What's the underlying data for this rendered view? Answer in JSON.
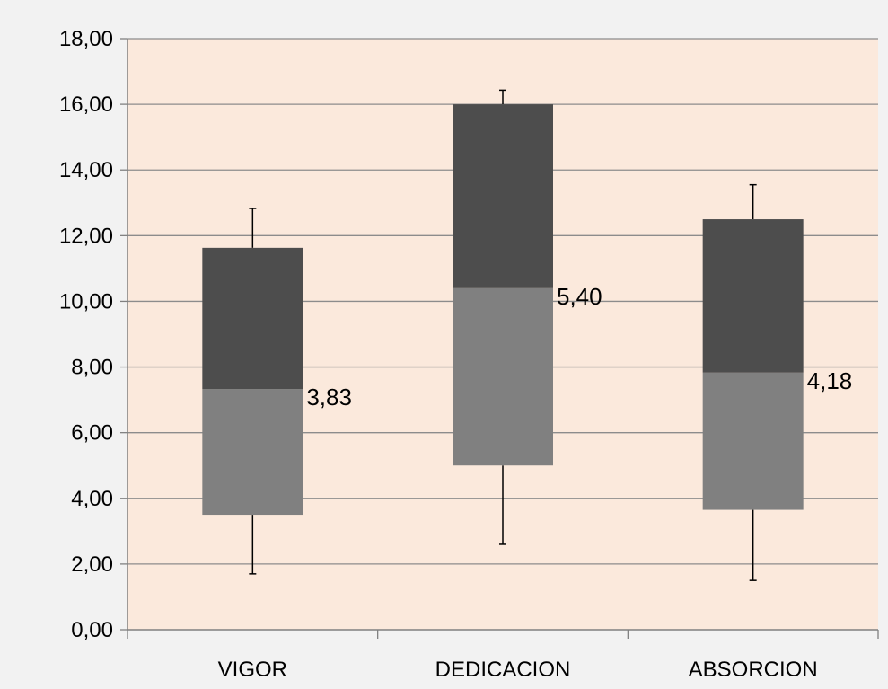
{
  "chart_data": {
    "type": "boxplot",
    "categories": [
      "VIGOR",
      "DEDICACION",
      "ABSORCION"
    ],
    "ylim": [
      0,
      18
    ],
    "y_ticks": [
      "0,00",
      "2,00",
      "4,00",
      "6,00",
      "8,00",
      "10,00",
      "12,00",
      "14,00",
      "16,00",
      "18,00"
    ],
    "y_tick_values": [
      0,
      2,
      4,
      6,
      8,
      10,
      12,
      14,
      16,
      18
    ],
    "grid": true,
    "boxes": [
      {
        "category": "VIGOR",
        "min": 1.7,
        "q1": 3.5,
        "median": 7.33,
        "q3": 11.63,
        "max": 12.83,
        "label": "3,83"
      },
      {
        "category": "DEDICACION",
        "min": 2.6,
        "q1": 5.0,
        "median": 10.4,
        "q3": 16.0,
        "max": 16.43,
        "label": "5,40"
      },
      {
        "category": "ABSORCION",
        "min": 1.5,
        "q1": 3.65,
        "median": 7.83,
        "q3": 12.5,
        "max": 13.55,
        "label": "4,18"
      }
    ],
    "colors": {
      "plot_background": "#fbe9dc",
      "page_background": "#f2f2f2",
      "lower_box": "#808080",
      "upper_box": "#4d4d4d",
      "gridline": "#8c8c8c",
      "axis": "#808080",
      "whisker": "#000000"
    }
  }
}
